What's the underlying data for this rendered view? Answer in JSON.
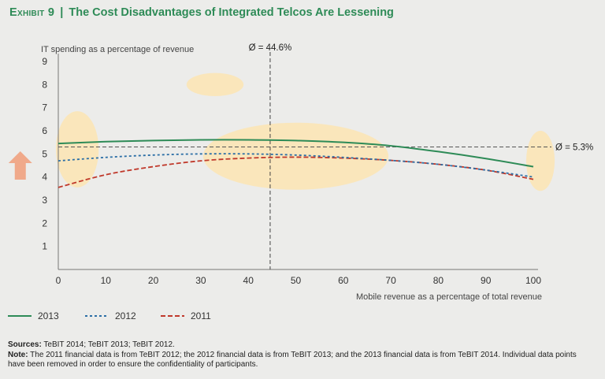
{
  "title": {
    "label": "Exhibit 9",
    "separator": "|",
    "text": "The Cost Disadvantages of Integrated Telcos Are Lessening"
  },
  "footer": {
    "sources_label": "Sources:",
    "sources_text": " TeBIT 2014; TeBIT 2013; TeBIT 2012.",
    "note_label": "Note:",
    "note_text": " The 2011 financial data is from TeBIT 2012; the 2012 financial data is from TeBIT 2013; and the 2013 financial data is from TeBIT 2014. Individual data points have been removed in order to ensure the confidentiality of participants."
  },
  "colors": {
    "title": "#2e8b57",
    "s2013": "#2e8b57",
    "s2012": "#2c6fa6",
    "s2011": "#c0392b",
    "highlight": "#fbe6b8",
    "arrow": "#f0a98a"
  },
  "chart_data": {
    "type": "line",
    "title": "",
    "xlabel": "Mobile revenue as a percentage of total revenue",
    "ylabel": "IT spending as a percentage of revenue",
    "xlim": [
      0,
      100
    ],
    "ylim": [
      0,
      9
    ],
    "xticks": [
      0,
      10,
      20,
      30,
      40,
      50,
      60,
      70,
      80,
      90,
      100
    ],
    "yticks": [
      1,
      2,
      3,
      4,
      5,
      6,
      7,
      8,
      9
    ],
    "grid": false,
    "legend_position": "bottom-left",
    "series": [
      {
        "name": "2013",
        "style": "solid",
        "color": "#2e8b57",
        "x": [
          0,
          10,
          20,
          30,
          40,
          50,
          60,
          70,
          80,
          90,
          100
        ],
        "y": [
          5.45,
          5.53,
          5.58,
          5.61,
          5.61,
          5.58,
          5.5,
          5.35,
          5.1,
          4.8,
          4.45
        ]
      },
      {
        "name": "2012",
        "style": "dotted",
        "color": "#2c6fa6",
        "x": [
          0,
          10,
          20,
          30,
          40,
          50,
          60,
          70,
          80,
          90,
          100
        ],
        "y": [
          4.7,
          4.85,
          4.95,
          5.0,
          5.0,
          4.95,
          4.85,
          4.72,
          4.55,
          4.3,
          4.0
        ]
      },
      {
        "name": "2011",
        "style": "dashed",
        "color": "#c0392b",
        "x": [
          0,
          10,
          20,
          30,
          40,
          50,
          60,
          70,
          80,
          90,
          100
        ],
        "y": [
          3.55,
          4.1,
          4.45,
          4.7,
          4.82,
          4.86,
          4.82,
          4.72,
          4.55,
          4.3,
          3.9
        ]
      }
    ],
    "reference_lines": [
      {
        "orientation": "vertical",
        "value": 44.6,
        "label": "Ø = 44.6%"
      },
      {
        "orientation": "horizontal",
        "value": 5.3,
        "label": "Ø = 5.3%"
      }
    ],
    "highlights": [
      {
        "cx": 4,
        "cy": 5.2,
        "rx": 4.5,
        "ry": 1.65
      },
      {
        "cx": 33,
        "cy": 8.0,
        "rx": 6,
        "ry": 0.5
      },
      {
        "cx": 50,
        "cy": 4.9,
        "rx": 19.5,
        "ry": 1.45
      },
      {
        "cx": 101.5,
        "cy": 4.7,
        "rx": 3,
        "ry": 1.3
      }
    ],
    "trend_arrow": {
      "direction": "up",
      "x": -8,
      "y": 4.5
    }
  }
}
